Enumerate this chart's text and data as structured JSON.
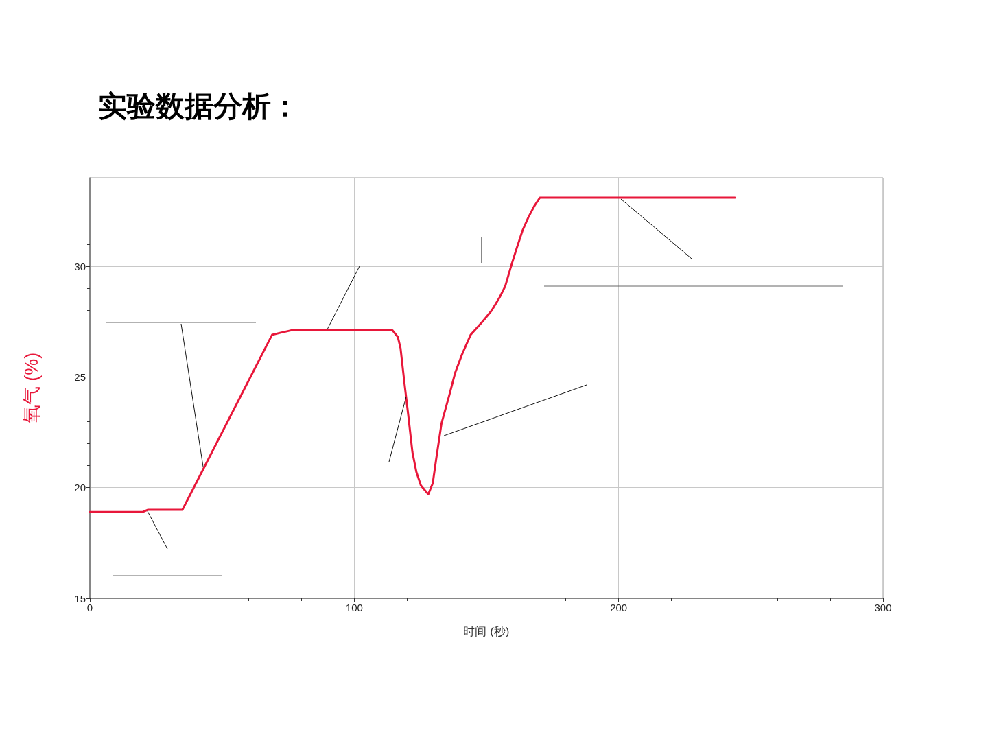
{
  "chart_data": {
    "type": "line",
    "title": "实验数据分析：",
    "xlabel": "时间 (秒)",
    "ylabel": "氧气 (%)",
    "x": [
      0,
      20,
      22,
      35,
      68.9,
      72.2,
      76,
      85,
      114.5,
      116.5,
      117.5,
      119,
      120.4,
      122,
      123.5,
      125.2,
      128,
      129.7,
      131,
      133,
      136,
      138.2,
      140.7,
      144,
      148.5,
      152,
      155,
      157.1,
      159.3,
      161.4,
      163.6,
      165.8,
      168,
      170.2,
      244
    ],
    "values": [
      18.9,
      18.9,
      19.0,
      19.0,
      26.9,
      27.0,
      27.1,
      27.1,
      27.1,
      26.8,
      26.3,
      24.7,
      23.3,
      21.6,
      20.7,
      20.1,
      19.7,
      20.2,
      21.3,
      22.9,
      24.2,
      25.2,
      26.0,
      26.9,
      27.5,
      28.0,
      28.6,
      29.1,
      30.0,
      30.8,
      31.6,
      32.2,
      32.7,
      33.1,
      33.1
    ],
    "color": "#e8173a",
    "line_style": "solid",
    "xlim": [
      0,
      300
    ],
    "xticks": [
      0,
      {
        "value": 20,
        "label": null
      },
      {
        "value": 40,
        "label": null
      },
      {
        "value": 60,
        "label": null
      },
      {
        "value": 80,
        "label": null
      },
      100,
      {
        "value": 120,
        "label": null
      },
      {
        "value": 140,
        "label": null
      },
      {
        "value": 160,
        "label": null
      },
      {
        "value": 180,
        "label": null
      },
      200,
      {
        "value": 220,
        "label": null
      },
      {
        "value": 240,
        "label": null
      },
      {
        "value": 260,
        "label": null
      },
      {
        "value": 280,
        "label": null
      },
      300
    ],
    "ylim": [
      15,
      34
    ],
    "yticks": [
      15,
      {
        "value": 16,
        "label": null
      },
      {
        "value": 17,
        "label": null
      },
      {
        "value": 18,
        "label": null
      },
      {
        "value": 19,
        "label": null
      },
      20,
      {
        "value": 21,
        "label": null
      },
      {
        "value": 22,
        "label": null
      },
      {
        "value": 23,
        "label": null
      },
      {
        "value": 24,
        "label": null
      },
      25,
      {
        "value": 26,
        "label": null
      },
      {
        "value": 27,
        "label": null
      },
      {
        "value": 28,
        "label": null
      },
      {
        "value": 29,
        "label": null
      },
      30,
      {
        "value": 31,
        "label": null
      },
      {
        "value": 32,
        "label": null
      },
      {
        "value": 33,
        "label": null
      }
    ],
    "grid": true
  }
}
